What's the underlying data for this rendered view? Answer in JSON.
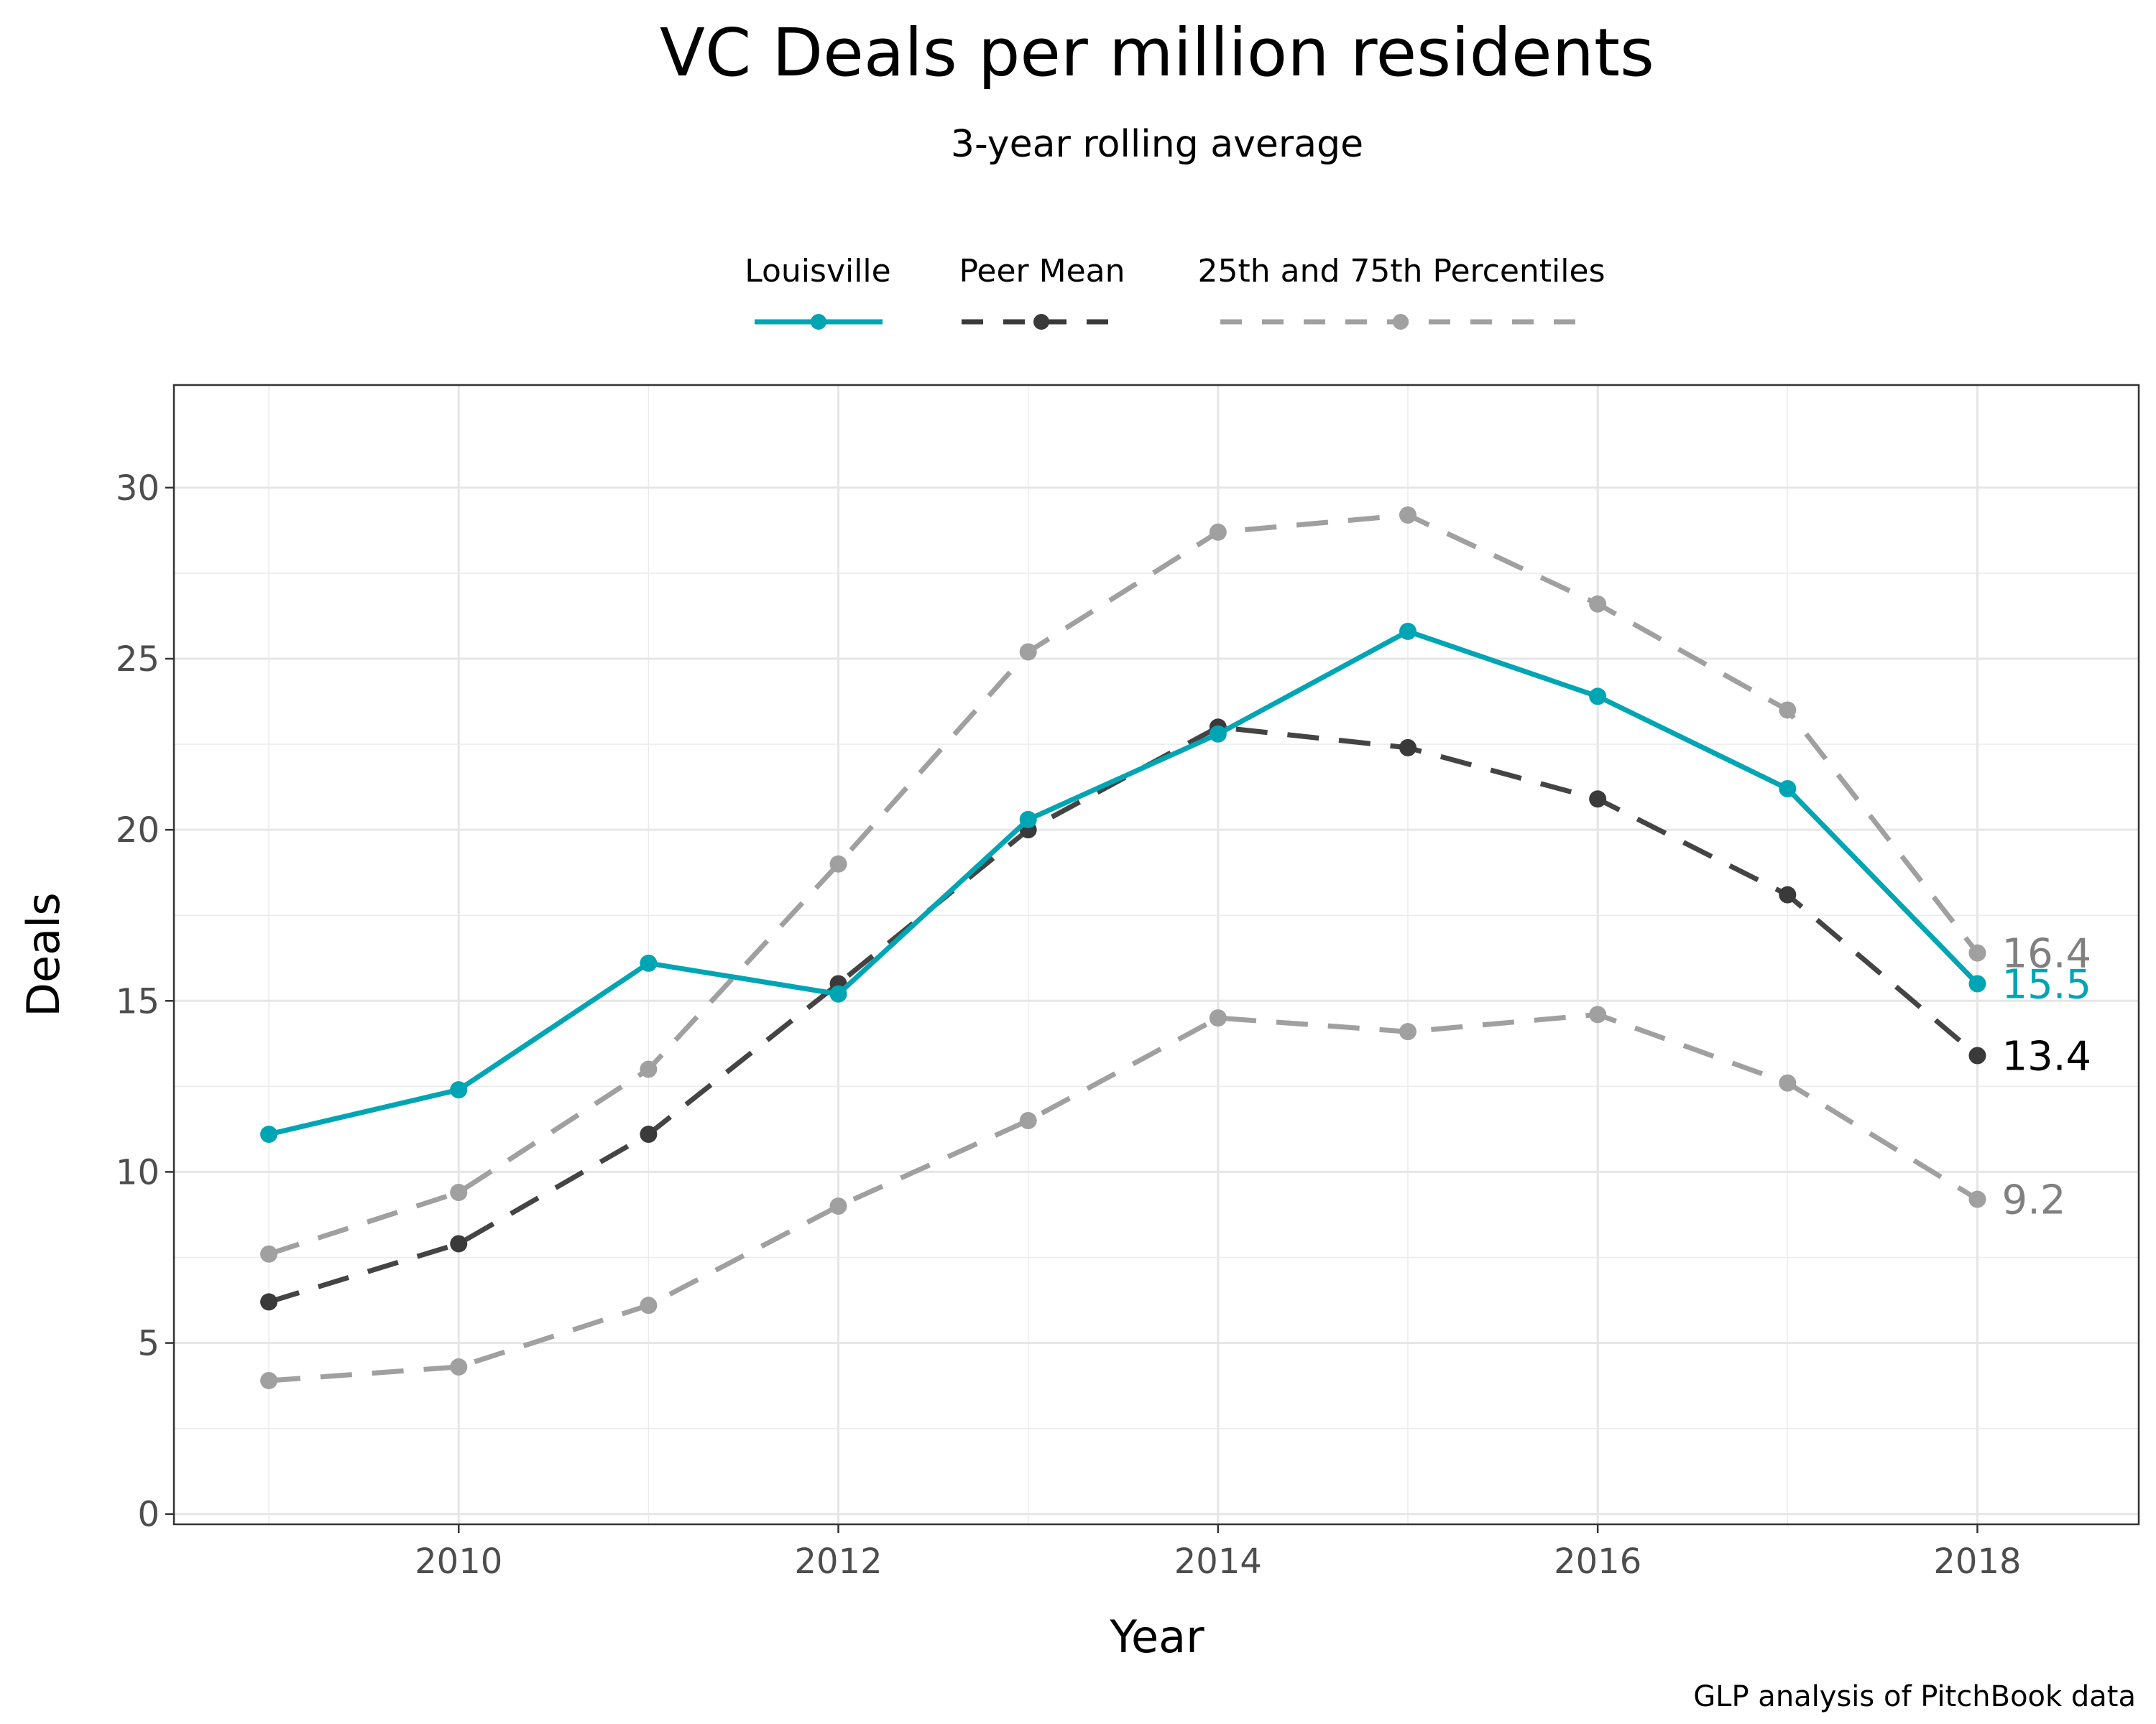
{
  "chart_data": {
    "type": "line",
    "title": "VC Deals per million residents",
    "subtitle": "3-year rolling average",
    "xlabel": "Year",
    "ylabel": "Deals",
    "caption": "GLP analysis of PitchBook data",
    "x": [
      2009,
      2010,
      2011,
      2012,
      2013,
      2014,
      2015,
      2016,
      2017,
      2018
    ],
    "xlim": [
      2008.5,
      2018.85
    ],
    "ylim": [
      -0.3,
      33.0
    ],
    "x_ticks": [
      "2010",
      "2012",
      "2014",
      "2016",
      "2018"
    ],
    "y_ticks": [
      "0",
      "5",
      "10",
      "15",
      "20",
      "25",
      "30"
    ],
    "grid": true,
    "legend_position": "top",
    "legend": [
      {
        "label": "Louisville",
        "style": "solid",
        "color": "#00a5b4"
      },
      {
        "label": "Peer Mean",
        "style": "dashed",
        "color": "#3a3a3a"
      },
      {
        "label": "25th and 75th Percentiles",
        "style": "dashed",
        "color": "#a0a0a0"
      }
    ],
    "series": [
      {
        "key": "p75",
        "style": "dashed",
        "color": "#a0a0a0",
        "values": [
          7.6,
          9.4,
          13.0,
          19.0,
          25.2,
          28.7,
          29.2,
          26.6,
          23.5,
          16.4
        ],
        "end_label": "16.4",
        "end_label_color": "#808080"
      },
      {
        "key": "p25",
        "style": "dashed",
        "color": "#a0a0a0",
        "values": [
          3.9,
          4.3,
          6.1,
          9.0,
          11.5,
          14.5,
          14.1,
          14.6,
          12.6,
          9.2
        ],
        "end_label": "9.2",
        "end_label_color": "#808080"
      },
      {
        "key": "peer",
        "style": "dashed",
        "color": "#3a3a3a",
        "values": [
          6.2,
          7.9,
          11.1,
          15.5,
          20.0,
          23.0,
          22.4,
          20.9,
          18.1,
          13.4
        ],
        "end_label": "13.4",
        "end_label_color": "#000000"
      },
      {
        "key": "louisville",
        "style": "solid",
        "color": "#00a5b4",
        "values": [
          11.1,
          12.4,
          16.1,
          15.2,
          20.3,
          22.8,
          25.8,
          23.9,
          21.2,
          15.5
        ],
        "end_label": "15.5",
        "end_label_color": "#00a5b4"
      }
    ]
  }
}
